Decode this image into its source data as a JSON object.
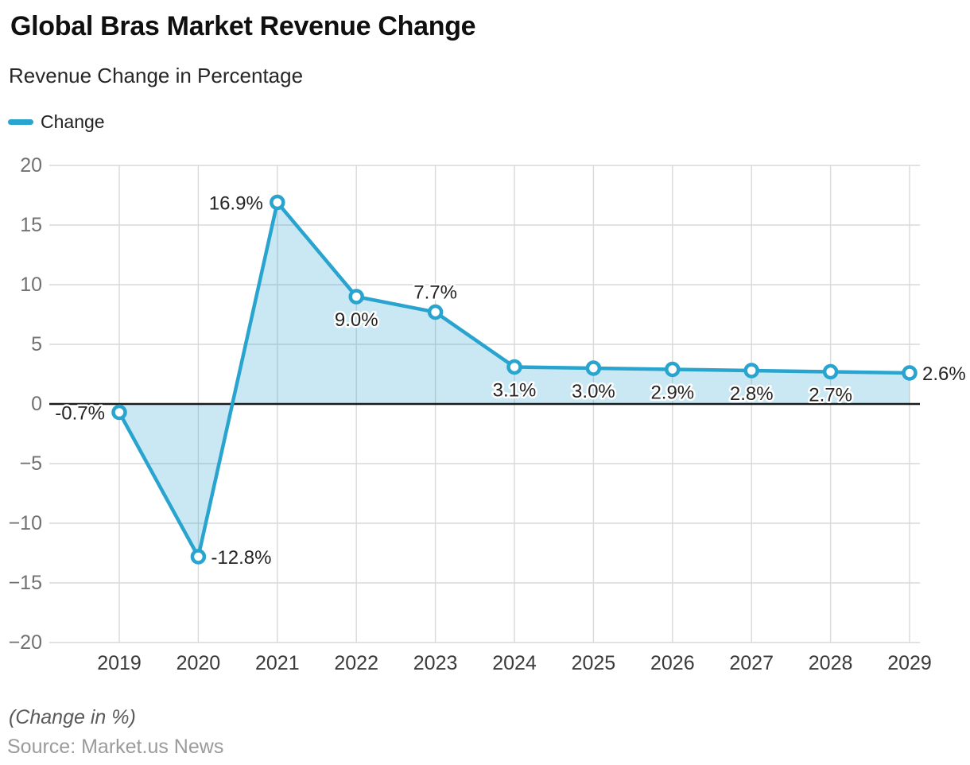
{
  "header": {
    "title": "Global Bras Market Revenue Change",
    "subtitle": "Revenue Change in Percentage"
  },
  "legend": {
    "series_label": "Change"
  },
  "footer": {
    "axis_note": "(Change in %)",
    "source": "Source: Market.us News"
  },
  "colors": {
    "line": "#29A4CF",
    "area_fill": "rgba(41,164,207,0.25)",
    "marker_fill": "#ffffff",
    "grid": "#d9d9d9",
    "zero_line": "#1a1a1a"
  },
  "chart_data": {
    "type": "area",
    "title": "Global Bras Market Revenue Change",
    "subtitle": "Revenue Change in Percentage",
    "categories": [
      "2019",
      "2020",
      "2021",
      "2022",
      "2023",
      "2024",
      "2025",
      "2026",
      "2027",
      "2028",
      "2029"
    ],
    "series": [
      {
        "name": "Change",
        "values": [
          -0.7,
          -12.8,
          16.9,
          9.0,
          7.7,
          3.1,
          3.0,
          2.9,
          2.8,
          2.7,
          2.6
        ]
      }
    ],
    "point_labels": [
      "-0.7%",
      "-12.8%",
      "16.9%",
      "9.0%",
      "7.7%",
      "3.1%",
      "3.0%",
      "2.9%",
      "2.8%",
      "2.7%",
      "2.6%"
    ],
    "point_label_positions": [
      "left",
      "right",
      "left",
      "below",
      "above",
      "below",
      "below",
      "below",
      "below",
      "below",
      "right"
    ],
    "xlabel": "",
    "ylabel": "Change in %",
    "ylim": [
      -20,
      20
    ],
    "y_ticks": [
      20,
      15,
      10,
      5,
      0,
      -5,
      -10,
      -15,
      -20
    ],
    "y_tick_labels": [
      "20",
      "15",
      "10",
      "5",
      "0",
      "−5",
      "−10",
      "−15",
      "−20"
    ],
    "baseline": 0,
    "grid": true,
    "legend_position": "top-left"
  }
}
